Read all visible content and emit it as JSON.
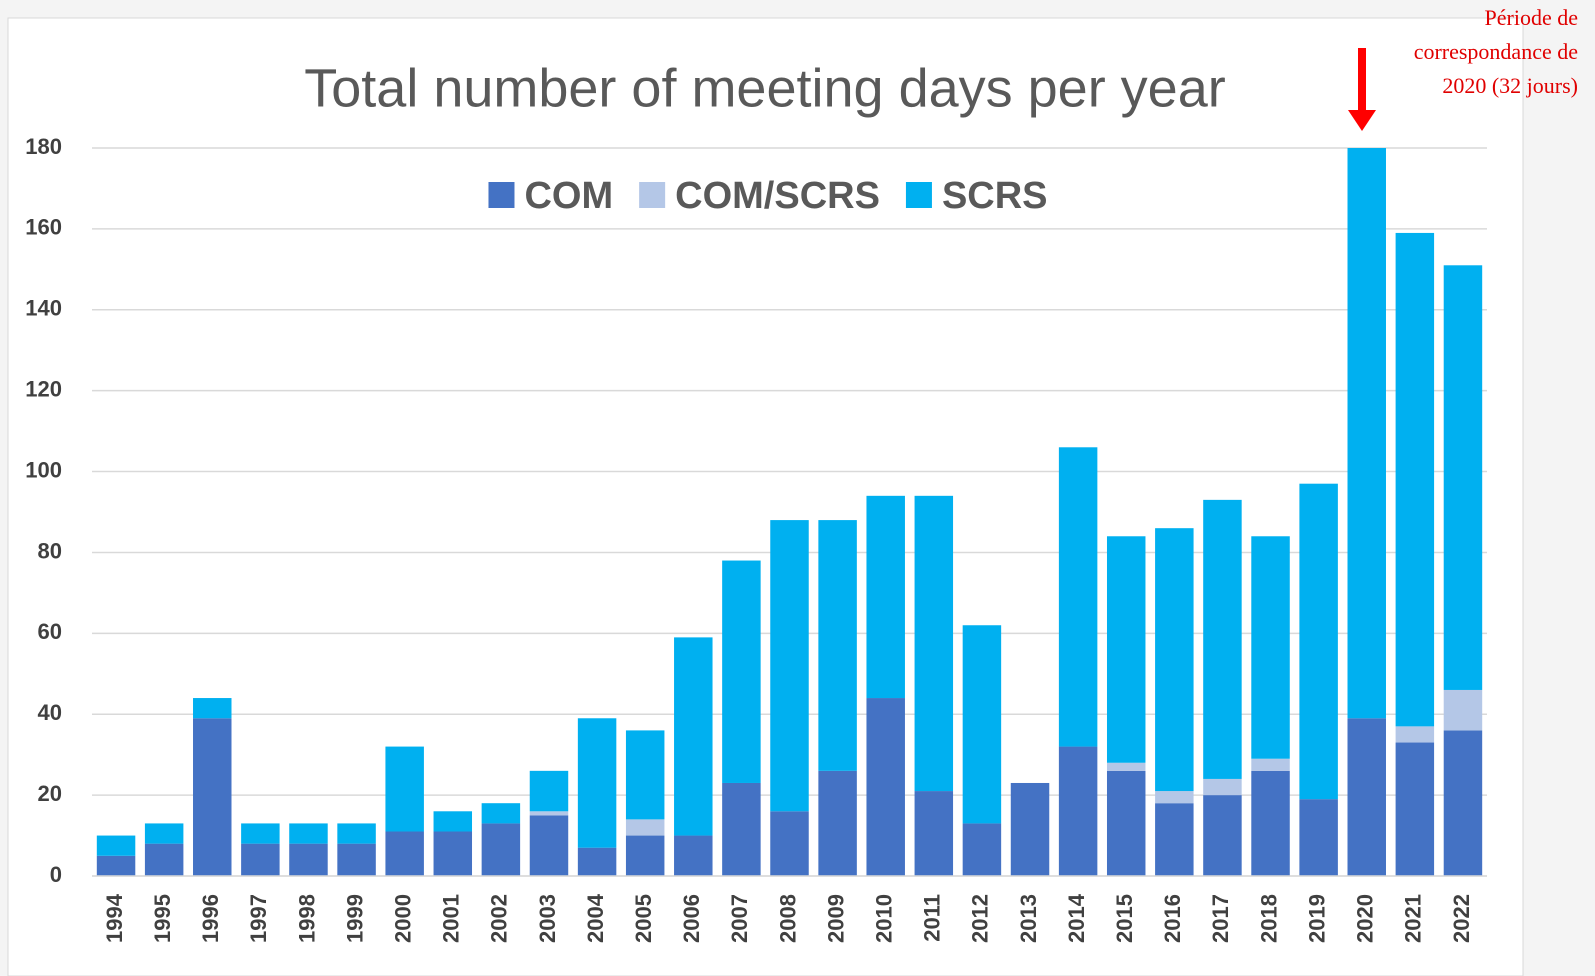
{
  "chart_data": {
    "type": "stacked_bar",
    "title": "Total number of meeting days per year",
    "annotation": [
      "Période de",
      "correspondance de",
      "2020 (32 jours)"
    ],
    "categories": [
      "1994",
      "1995",
      "1996",
      "1997",
      "1998",
      "1999",
      "2000",
      "2001",
      "2002",
      "2003",
      "2004",
      "2005",
      "2006",
      "2007",
      "2008",
      "2009",
      "2010",
      "2011",
      "2012",
      "2013",
      "2014",
      "2015",
      "2016",
      "2017",
      "2018",
      "2019",
      "2020",
      "2021",
      "2022"
    ],
    "series": [
      {
        "name": "COM",
        "color": "#4472c4",
        "values": [
          5,
          8,
          39,
          8,
          8,
          8,
          11,
          11,
          13,
          15,
          7,
          10,
          10,
          23,
          16,
          26,
          44,
          21,
          13,
          23,
          32,
          26,
          18,
          20,
          26,
          19,
          39,
          33,
          36
        ]
      },
      {
        "name": "COM/SCRS",
        "color": "#b4c7e7",
        "values": [
          0,
          0,
          0,
          0,
          0,
          0,
          0,
          0,
          0,
          1,
          0,
          4,
          0,
          0,
          0,
          0,
          0,
          0,
          0,
          0,
          0,
          2,
          3,
          4,
          3,
          0,
          0,
          4,
          10
        ]
      },
      {
        "name": "SCRS",
        "color": "#00b0f0",
        "values": [
          5,
          5,
          5,
          5,
          5,
          5,
          21,
          5,
          5,
          10,
          32,
          22,
          49,
          55,
          72,
          62,
          50,
          73,
          49,
          0,
          74,
          56,
          65,
          69,
          55,
          78,
          141,
          122,
          105
        ]
      }
    ],
    "ylim": [
      0,
      180
    ],
    "yticks": [
      0,
      20,
      40,
      60,
      80,
      100,
      120,
      140,
      160,
      180
    ],
    "grid": true
  }
}
